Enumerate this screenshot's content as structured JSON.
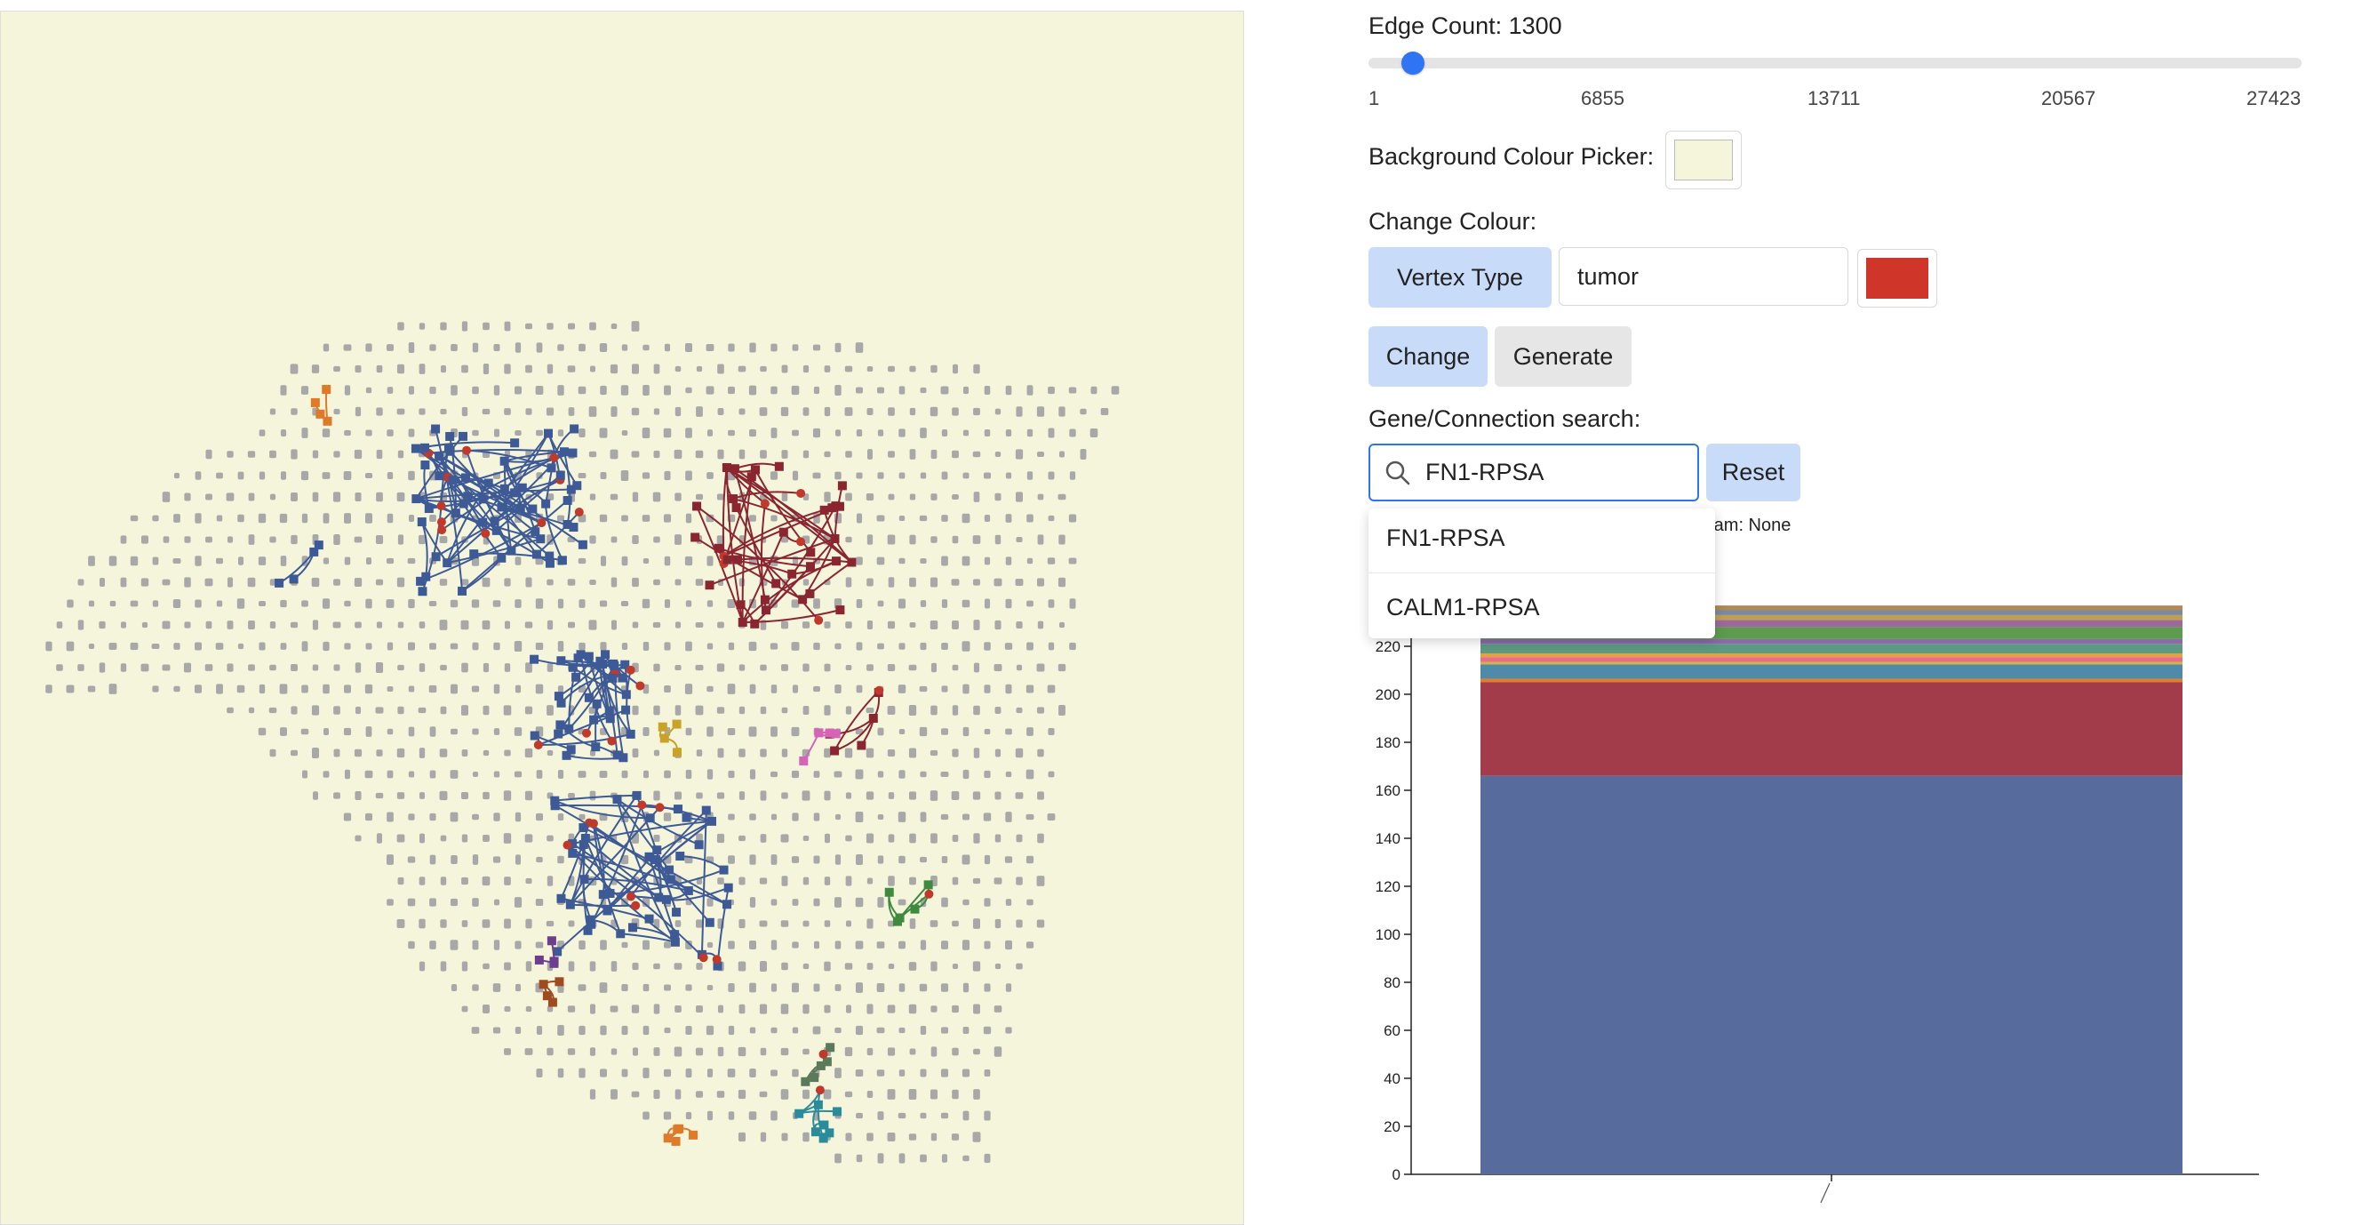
{
  "controls": {
    "edge_count_label": "Edge Count: 1300",
    "edge_count": {
      "min": 1,
      "max": 27423,
      "value": 1300
    },
    "slider_ticks": [
      "1",
      "6855",
      "13711",
      "20567",
      "27423"
    ],
    "background_picker_label": "Background Colour Picker:",
    "background_color": "#f5f5dc",
    "change_colour_label": "Change Colour:",
    "vertex_type_button": "Vertex Type",
    "vertex_type_value": "tumor",
    "vertex_color": "#d0352a",
    "change_button": "Change",
    "generate_button": "Generate",
    "gene_search_label": "Gene/Connection search:",
    "search_value": "FN1-RPSA",
    "reset_button": "Reset",
    "dropdown_options": [
      "FN1-RPSA",
      "CALM1-RPSA"
    ],
    "histogram_label": "ram: None"
  },
  "network": {
    "background": "#f5f5dc",
    "grid_color": "#a8a8a8",
    "cluster_colors": [
      "#3d5a96",
      "#8b2530",
      "#e07a28",
      "#c9a227",
      "#d663b7",
      "#3e8a3e",
      "#6b3f8e",
      "#2a8c9a",
      "#5a7a5a",
      "#a04a20",
      "#c0392b"
    ]
  },
  "chart_data": {
    "type": "bar",
    "stacked": true,
    "categories": [
      ""
    ],
    "ylim": [
      0,
      240
    ],
    "y_ticks": [
      0,
      20,
      40,
      60,
      80,
      100,
      120,
      140,
      160,
      180,
      200,
      220
    ],
    "series": [
      {
        "values": [
          166
        ],
        "color": "#576c9c"
      },
      {
        "values": [
          39
        ],
        "color": "#a23c4a"
      },
      {
        "values": [
          1.5
        ],
        "color": "#e07f2f"
      },
      {
        "values": [
          6
        ],
        "color": "#4f8aa8"
      },
      {
        "values": [
          1
        ],
        "color": "#d4b440"
      },
      {
        "values": [
          2
        ],
        "color": "#e86d8d"
      },
      {
        "values": [
          1.5
        ],
        "color": "#e7a03c"
      },
      {
        "values": [
          4
        ],
        "color": "#5c9a82"
      },
      {
        "values": [
          2
        ],
        "color": "#8a6aa8"
      },
      {
        "values": [
          5
        ],
        "color": "#5d9b4e"
      },
      {
        "values": [
          3
        ],
        "color": "#9c6a9a"
      },
      {
        "values": [
          2
        ],
        "color": "#c0a050"
      },
      {
        "values": [
          2
        ],
        "color": "#7c8aa0"
      },
      {
        "values": [
          2
        ],
        "color": "#b08a58"
      }
    ]
  }
}
